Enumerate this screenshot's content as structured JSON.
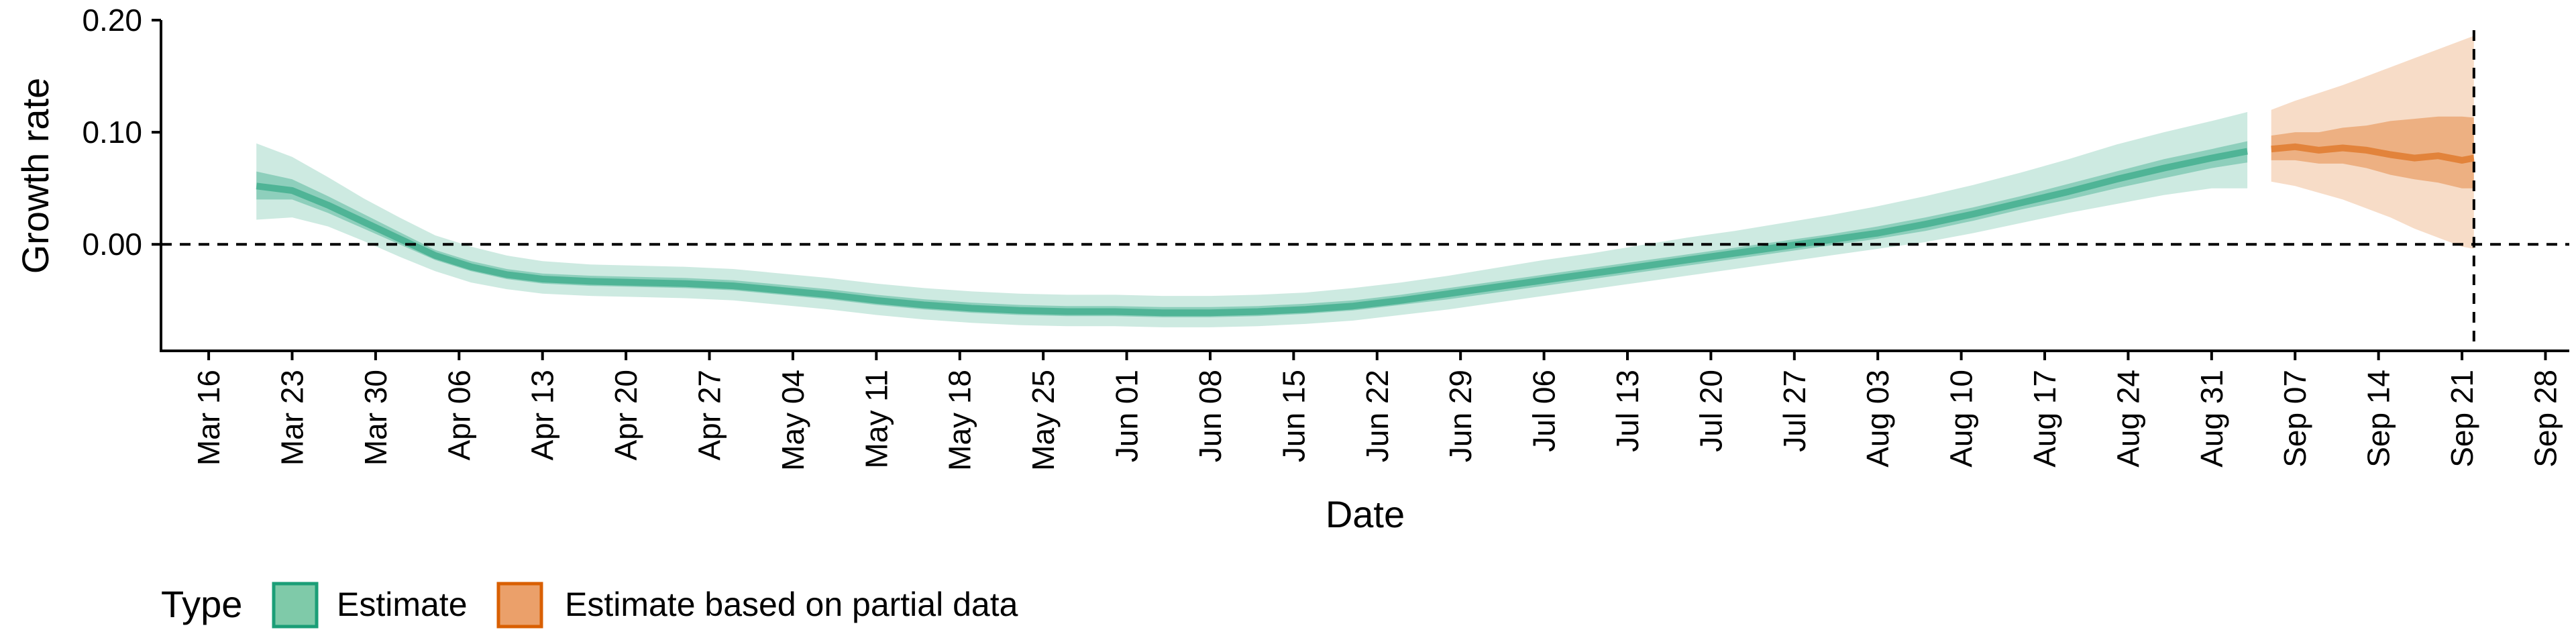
{
  "chart_data": {
    "type": "area",
    "title": "",
    "xlabel": "Date",
    "ylabel": "Growth rate",
    "x_range": [
      "2020-03-12",
      "2020-09-30"
    ],
    "ylim": [
      -0.095,
      0.2
    ],
    "y_ticks": [
      {
        "value": 0.0,
        "label": "0.00"
      },
      {
        "value": 0.1,
        "label": "0.10"
      },
      {
        "value": 0.2,
        "label": "0.20"
      }
    ],
    "x_ticks": [
      {
        "date": "2020-03-16",
        "label": "Mar 16"
      },
      {
        "date": "2020-03-23",
        "label": "Mar 23"
      },
      {
        "date": "2020-03-30",
        "label": "Mar 30"
      },
      {
        "date": "2020-04-06",
        "label": "Apr 06"
      },
      {
        "date": "2020-04-13",
        "label": "Apr 13"
      },
      {
        "date": "2020-04-20",
        "label": "Apr 20"
      },
      {
        "date": "2020-04-27",
        "label": "Apr 27"
      },
      {
        "date": "2020-05-04",
        "label": "May 04"
      },
      {
        "date": "2020-05-11",
        "label": "May 11"
      },
      {
        "date": "2020-05-18",
        "label": "May 18"
      },
      {
        "date": "2020-05-25",
        "label": "May 25"
      },
      {
        "date": "2020-06-01",
        "label": "Jun 01"
      },
      {
        "date": "2020-06-08",
        "label": "Jun 08"
      },
      {
        "date": "2020-06-15",
        "label": "Jun 15"
      },
      {
        "date": "2020-06-22",
        "label": "Jun 22"
      },
      {
        "date": "2020-06-29",
        "label": "Jun 29"
      },
      {
        "date": "2020-07-06",
        "label": "Jul 06"
      },
      {
        "date": "2020-07-13",
        "label": "Jul 13"
      },
      {
        "date": "2020-07-20",
        "label": "Jul 20"
      },
      {
        "date": "2020-07-27",
        "label": "Jul 27"
      },
      {
        "date": "2020-08-03",
        "label": "Aug 03"
      },
      {
        "date": "2020-08-10",
        "label": "Aug 10"
      },
      {
        "date": "2020-08-17",
        "label": "Aug 17"
      },
      {
        "date": "2020-08-24",
        "label": "Aug 24"
      },
      {
        "date": "2020-08-31",
        "label": "Aug 31"
      },
      {
        "date": "2020-09-07",
        "label": "Sep 07"
      },
      {
        "date": "2020-09-14",
        "label": "Sep 14"
      },
      {
        "date": "2020-09-21",
        "label": "Sep 21"
      },
      {
        "date": "2020-09-28",
        "label": "Sep 28"
      }
    ],
    "reference_lines": {
      "horizontal_y": 0.0,
      "vertical_date": "2020-09-22"
    },
    "grid": false,
    "legend": {
      "position": "bottom-left",
      "title": "Type",
      "items": [
        {
          "label": "Estimate",
          "fill": "#7fcaa9",
          "border": "#1b9e77"
        },
        {
          "label": "Estimate based on partial data",
          "fill": "#eba06a",
          "border": "#d95f02"
        }
      ]
    },
    "series": [
      {
        "name": "Estimate",
        "color": "#1b9e77",
        "x": [
          "2020-03-20",
          "2020-03-23",
          "2020-03-26",
          "2020-03-29",
          "2020-04-01",
          "2020-04-04",
          "2020-04-07",
          "2020-04-10",
          "2020-04-13",
          "2020-04-17",
          "2020-04-21",
          "2020-04-25",
          "2020-04-29",
          "2020-05-03",
          "2020-05-07",
          "2020-05-11",
          "2020-05-15",
          "2020-05-19",
          "2020-05-23",
          "2020-05-27",
          "2020-05-31",
          "2020-06-04",
          "2020-06-08",
          "2020-06-12",
          "2020-06-16",
          "2020-06-20",
          "2020-06-24",
          "2020-06-28",
          "2020-07-02",
          "2020-07-06",
          "2020-07-10",
          "2020-07-14",
          "2020-07-18",
          "2020-07-22",
          "2020-07-26",
          "2020-07-30",
          "2020-08-03",
          "2020-08-07",
          "2020-08-11",
          "2020-08-15",
          "2020-08-19",
          "2020-08-23",
          "2020-08-27",
          "2020-08-31",
          "2020-09-03"
        ],
        "median": [
          0.052,
          0.048,
          0.035,
          0.02,
          0.005,
          -0.01,
          -0.02,
          -0.027,
          -0.031,
          -0.033,
          -0.034,
          -0.035,
          -0.037,
          -0.041,
          -0.045,
          -0.05,
          -0.054,
          -0.057,
          -0.059,
          -0.06,
          -0.06,
          -0.061,
          -0.061,
          -0.06,
          -0.058,
          -0.055,
          -0.05,
          -0.044,
          -0.038,
          -0.032,
          -0.026,
          -0.02,
          -0.014,
          -0.008,
          -0.002,
          0.004,
          0.01,
          0.018,
          0.027,
          0.037,
          0.047,
          0.058,
          0.068,
          0.077,
          0.083
        ],
        "ci50_low": [
          0.04,
          0.04,
          0.028,
          0.014,
          0.0,
          -0.014,
          -0.024,
          -0.031,
          -0.035,
          -0.037,
          -0.038,
          -0.039,
          -0.041,
          -0.045,
          -0.049,
          -0.054,
          -0.058,
          -0.061,
          -0.063,
          -0.064,
          -0.064,
          -0.065,
          -0.065,
          -0.064,
          -0.062,
          -0.059,
          -0.054,
          -0.049,
          -0.043,
          -0.037,
          -0.031,
          -0.025,
          -0.019,
          -0.013,
          -0.007,
          -0.001,
          0.005,
          0.012,
          0.021,
          0.031,
          0.04,
          0.05,
          0.059,
          0.068,
          0.073
        ],
        "ci50_high": [
          0.065,
          0.058,
          0.043,
          0.027,
          0.011,
          -0.005,
          -0.015,
          -0.022,
          -0.026,
          -0.028,
          -0.029,
          -0.03,
          -0.032,
          -0.036,
          -0.04,
          -0.045,
          -0.049,
          -0.052,
          -0.054,
          -0.055,
          -0.055,
          -0.056,
          -0.056,
          -0.055,
          -0.053,
          -0.05,
          -0.045,
          -0.039,
          -0.033,
          -0.027,
          -0.021,
          -0.015,
          -0.009,
          -0.003,
          0.003,
          0.009,
          0.016,
          0.024,
          0.033,
          0.043,
          0.054,
          0.065,
          0.076,
          0.085,
          0.092
        ],
        "ci90_low": [
          0.022,
          0.024,
          0.016,
          0.003,
          -0.011,
          -0.024,
          -0.034,
          -0.04,
          -0.044,
          -0.046,
          -0.047,
          -0.048,
          -0.05,
          -0.054,
          -0.058,
          -0.063,
          -0.067,
          -0.07,
          -0.072,
          -0.073,
          -0.073,
          -0.074,
          -0.074,
          -0.073,
          -0.071,
          -0.068,
          -0.063,
          -0.058,
          -0.052,
          -0.046,
          -0.04,
          -0.034,
          -0.028,
          -0.022,
          -0.016,
          -0.01,
          -0.004,
          0.002,
          0.01,
          0.019,
          0.028,
          0.036,
          0.044,
          0.05,
          0.05
        ],
        "ci90_high": [
          0.09,
          0.078,
          0.06,
          0.041,
          0.024,
          0.008,
          -0.002,
          -0.01,
          -0.015,
          -0.018,
          -0.019,
          -0.02,
          -0.022,
          -0.026,
          -0.03,
          -0.035,
          -0.039,
          -0.042,
          -0.044,
          -0.045,
          -0.045,
          -0.046,
          -0.046,
          -0.045,
          -0.043,
          -0.039,
          -0.034,
          -0.028,
          -0.021,
          -0.014,
          -0.008,
          -0.001,
          0.006,
          0.012,
          0.019,
          0.026,
          0.034,
          0.043,
          0.053,
          0.064,
          0.076,
          0.089,
          0.1,
          0.11,
          0.118
        ]
      },
      {
        "name": "Estimate based on partial data",
        "color": "#d95f02",
        "x": [
          "2020-09-05",
          "2020-09-07",
          "2020-09-09",
          "2020-09-11",
          "2020-09-13",
          "2020-09-15",
          "2020-09-17",
          "2020-09-19",
          "2020-09-21",
          "2020-09-22"
        ],
        "median": [
          0.085,
          0.087,
          0.084,
          0.086,
          0.084,
          0.08,
          0.077,
          0.079,
          0.075,
          0.077
        ],
        "ci50_low": [
          0.075,
          0.075,
          0.072,
          0.072,
          0.068,
          0.062,
          0.058,
          0.055,
          0.05,
          0.05
        ],
        "ci50_high": [
          0.097,
          0.1,
          0.1,
          0.104,
          0.106,
          0.11,
          0.112,
          0.114,
          0.114,
          0.113
        ],
        "ci90_low": [
          0.056,
          0.052,
          0.046,
          0.04,
          0.032,
          0.024,
          0.014,
          0.006,
          -0.002,
          -0.004
        ],
        "ci90_high": [
          0.12,
          0.128,
          0.135,
          0.142,
          0.15,
          0.158,
          0.166,
          0.174,
          0.182,
          0.186
        ]
      }
    ]
  }
}
